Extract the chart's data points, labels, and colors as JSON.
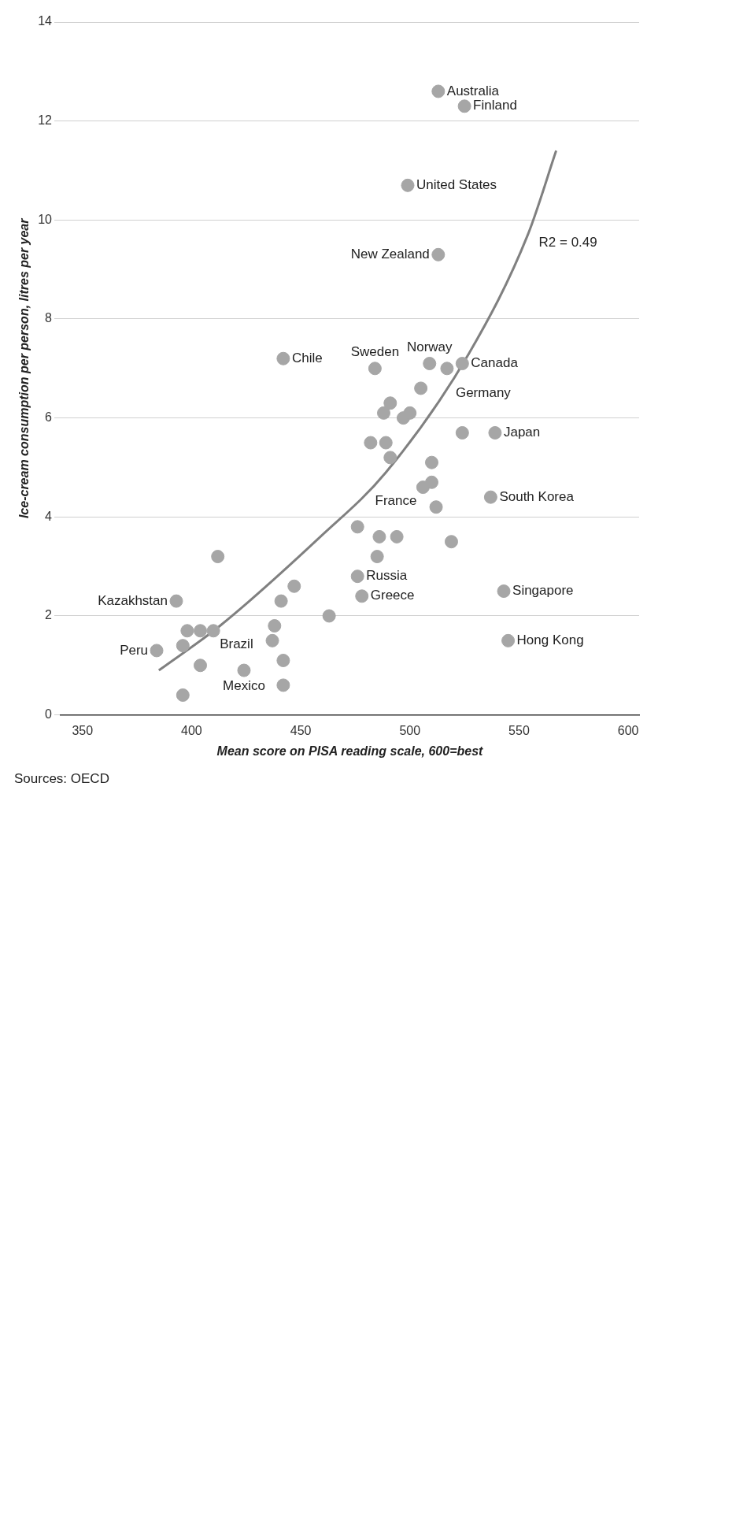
{
  "chart_data": {
    "type": "scatter",
    "xlabel": "Mean score on PISA reading scale, 600=best",
    "ylabel": "Ice-cream consumption per person, litres per year",
    "xlim": [
      340,
      605
    ],
    "xticks": [
      350,
      400,
      450,
      500,
      550,
      600
    ],
    "ylim": [
      0,
      14
    ],
    "yticks": [
      0,
      2,
      4,
      6,
      8,
      10,
      12,
      14
    ],
    "grid": "y",
    "series": [
      {
        "color": "#a6a6a6",
        "marker": "circle",
        "x": [
          384,
          393,
          396,
          396,
          398,
          404,
          404,
          410,
          412,
          424,
          437,
          438,
          441,
          442,
          442,
          442,
          447,
          463,
          476,
          476,
          478,
          482,
          484,
          485,
          486,
          488,
          489,
          491,
          491,
          494,
          497,
          499,
          500,
          505,
          506,
          509,
          510,
          510,
          512,
          513,
          513,
          517,
          519,
          524,
          524,
          525,
          537,
          539,
          543,
          545
        ],
        "values": [
          1.3,
          2.3,
          1.4,
          0.4,
          1.7,
          1.0,
          1.7,
          1.7,
          3.2,
          0.9,
          1.5,
          1.8,
          2.3,
          1.1,
          0.6,
          7.2,
          2.6,
          2.0,
          3.8,
          2.8,
          2.4,
          5.5,
          7.0,
          3.2,
          3.6,
          6.1,
          5.5,
          5.2,
          6.3,
          3.6,
          6.0,
          10.7,
          6.1,
          6.6,
          4.6,
          7.1,
          5.1,
          4.7,
          4.2,
          12.6,
          9.3,
          7.0,
          3.5,
          7.1,
          5.7,
          12.3,
          4.4,
          5.7,
          2.5,
          1.5
        ]
      },
      {
        "type": "line",
        "color": "#808080",
        "marker": "none",
        "x": [
          385,
          413,
          459,
          489,
          527,
          554,
          567
        ],
        "values": [
          0.9,
          1.8,
          3.6,
          4.9,
          7.3,
          9.7,
          11.4
        ]
      }
    ],
    "annotations": [
      {
        "text": "Peru",
        "x": 384,
        "y": 1.3
      },
      {
        "text": "Kazakhstan",
        "x": 393,
        "y": 2.3
      },
      {
        "text": "Brazil",
        "x": 410,
        "y": 1.7
      },
      {
        "text": "Mexico",
        "x": 424,
        "y": 0.9
      },
      {
        "text": "Chile",
        "x": 442,
        "y": 7.2
      },
      {
        "text": "Russia",
        "x": 476,
        "y": 2.8
      },
      {
        "text": "Greece",
        "x": 478,
        "y": 2.4
      },
      {
        "text": "Sweden",
        "x": 484,
        "y": 7.0
      },
      {
        "text": "United States",
        "x": 499,
        "y": 10.7
      },
      {
        "text": "France",
        "x": 506,
        "y": 4.6
      },
      {
        "text": "Norway",
        "x": 509,
        "y": 7.1
      },
      {
        "text": "Australia",
        "x": 513,
        "y": 12.6
      },
      {
        "text": "New Zealand",
        "x": 513,
        "y": 9.3
      },
      {
        "text": "Germany",
        "x": 517,
        "y": 7.0
      },
      {
        "text": "Canada",
        "x": 524,
        "y": 7.1
      },
      {
        "text": "Finland",
        "x": 525,
        "y": 12.3
      },
      {
        "text": "South Korea",
        "x": 537,
        "y": 4.4
      },
      {
        "text": "Japan",
        "x": 539,
        "y": 5.7
      },
      {
        "text": "Singapore",
        "x": 543,
        "y": 2.5
      },
      {
        "text": "Hong Kong",
        "x": 545,
        "y": 1.5
      },
      "R2 = 0.49",
      "Sources: OECD"
    ]
  }
}
